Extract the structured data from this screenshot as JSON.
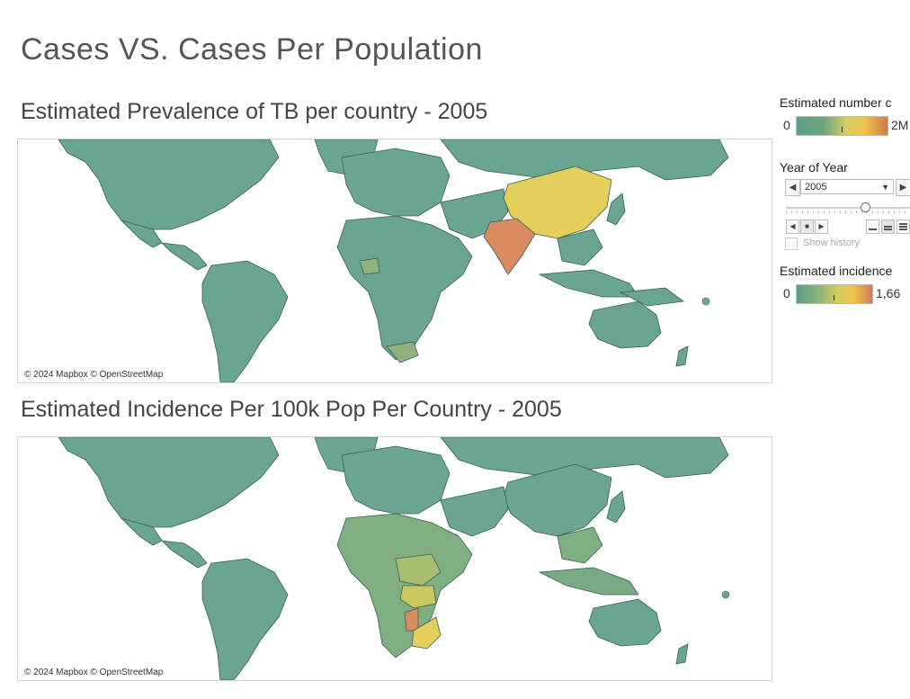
{
  "dashboard": {
    "title": "Cases VS. Cases Per Population"
  },
  "maps": [
    {
      "title": "Estimated Prevalence of TB per country - 2005",
      "attribution": "© 2024 Mapbox © OpenStreetMap"
    },
    {
      "title": "Estimated Incidence Per 100k Pop Per Country - 2005",
      "attribution": "© 2024 Mapbox © OpenStreetMap"
    }
  ],
  "legend_cases": {
    "title": "Estimated number c",
    "min": "0",
    "max": "2M"
  },
  "filter": {
    "title": "Year of Year",
    "value": "2005",
    "show_history_label": "Show history",
    "icons": [
      "chevron-left-icon",
      "chevron-right-icon",
      "play-back-icon",
      "stop-icon",
      "play-forward-icon",
      "speed-slow-icon",
      "speed-medium-icon",
      "speed-fast-icon"
    ]
  },
  "legend_incidence": {
    "title": "Estimated incidence",
    "min": "0",
    "max": "1,66"
  },
  "colors": {
    "base": "#6aa591",
    "border": "#3c5f54",
    "yellow": "#e3cf5a",
    "orange": "#d98a5e",
    "light_green": "#8fb37d",
    "gradient": [
      "#5d9e86",
      "#8db47a",
      "#d6cd5e",
      "#f0c34c",
      "#d07952"
    ]
  }
}
